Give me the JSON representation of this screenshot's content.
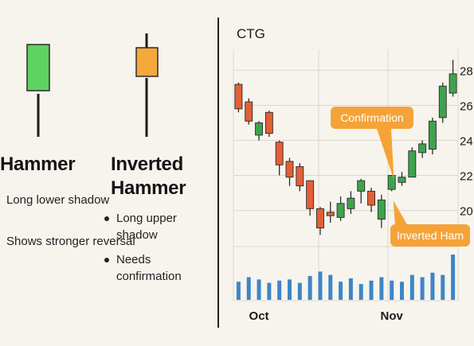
{
  "left": {
    "hammer": {
      "title": "Hammer",
      "points": [
        "Long lower shadow",
        "Shows stronger reversal"
      ],
      "color": "#5fd35f"
    },
    "inverted": {
      "title_line1": "Inverted",
      "title_line2": "Hammer",
      "points": [
        "Long upper shadow",
        "Needs confirmation"
      ],
      "color": "#f5a93a"
    }
  },
  "colors": {
    "up": "#3fa34d",
    "down": "#e35f36",
    "volume": "#3d86c6",
    "callout": "#f5a338",
    "grid": "#dcd7cc"
  },
  "chart_data": {
    "type": "candlestick",
    "title": "CTG",
    "ylim": [
      18.3,
      29.2
    ],
    "yticks": [
      20,
      22,
      24,
      26,
      28
    ],
    "xticks": [
      {
        "label": "Oct",
        "index": 2
      },
      {
        "label": "Nov",
        "index": 15
      }
    ],
    "grid": true,
    "candles": [
      {
        "o": 27.2,
        "h": 27.3,
        "l": 25.6,
        "c": 25.8
      },
      {
        "o": 26.2,
        "h": 26.4,
        "l": 24.9,
        "c": 25.1
      },
      {
        "o": 24.3,
        "h": 25.1,
        "l": 24.0,
        "c": 25.0
      },
      {
        "o": 25.6,
        "h": 25.7,
        "l": 24.2,
        "c": 24.4
      },
      {
        "o": 23.9,
        "h": 24.0,
        "l": 22.0,
        "c": 22.6
      },
      {
        "o": 22.8,
        "h": 23.0,
        "l": 21.4,
        "c": 21.9
      },
      {
        "o": 22.5,
        "h": 22.7,
        "l": 21.1,
        "c": 21.4
      },
      {
        "o": 21.7,
        "h": 21.7,
        "l": 19.7,
        "c": 20.1
      },
      {
        "o": 20.1,
        "h": 20.2,
        "l": 18.6,
        "c": 19.0
      },
      {
        "o": 19.9,
        "h": 20.5,
        "l": 19.3,
        "c": 19.7
      },
      {
        "o": 19.6,
        "h": 20.8,
        "l": 19.4,
        "c": 20.4
      },
      {
        "o": 20.1,
        "h": 21.1,
        "l": 19.8,
        "c": 20.7
      },
      {
        "o": 21.1,
        "h": 21.8,
        "l": 20.4,
        "c": 21.7
      },
      {
        "o": 21.1,
        "h": 21.3,
        "l": 19.9,
        "c": 20.3
      },
      {
        "o": 19.5,
        "h": 20.9,
        "l": 19.0,
        "c": 20.6
      },
      {
        "o": 21.2,
        "h": 22.0,
        "l": 21.1,
        "c": 22.0
      },
      {
        "o": 21.6,
        "h": 22.2,
        "l": 21.4,
        "c": 21.9
      },
      {
        "o": 21.9,
        "h": 23.6,
        "l": 21.9,
        "c": 23.4
      },
      {
        "o": 23.3,
        "h": 24.0,
        "l": 23.0,
        "c": 23.8
      },
      {
        "o": 23.5,
        "h": 25.3,
        "l": 23.2,
        "c": 25.1
      },
      {
        "o": 25.3,
        "h": 27.3,
        "l": 25.0,
        "c": 27.1
      },
      {
        "o": 26.7,
        "h": 28.6,
        "l": 26.5,
        "c": 27.8
      }
    ],
    "volume": [
      16,
      20,
      18,
      15,
      17,
      18,
      15,
      21,
      25,
      22,
      16,
      19,
      14,
      17,
      20,
      17,
      16,
      22,
      20,
      24,
      22,
      40
    ],
    "annotations": [
      {
        "text": "Confirmation",
        "index": 16
      },
      {
        "text": "Inverted Ham",
        "index": 15
      }
    ]
  }
}
